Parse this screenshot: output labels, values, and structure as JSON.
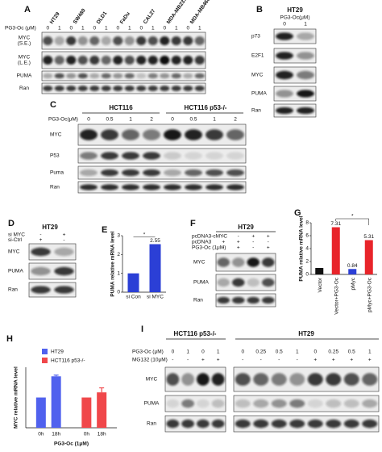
{
  "panels": {
    "A": {
      "label": "A",
      "cell_lines": [
        "HT29",
        "SW480",
        "DLD1",
        "FaDu",
        "CAL27",
        "MDA-MB231",
        "MDA-MB468"
      ],
      "treatment": "PG3-Oc (μM)",
      "doses": [
        "0",
        "1",
        "0",
        "1",
        "0",
        "1",
        "0",
        "1",
        "0",
        "1",
        "0",
        "1",
        "0",
        "1"
      ],
      "blots": [
        {
          "name": "MYC",
          "sub": "(S.E.)"
        },
        {
          "name": "MYC",
          "sub": "(L.E.)"
        },
        {
          "name": "PUMA"
        },
        {
          "name": "Ran"
        }
      ]
    },
    "B": {
      "label": "B",
      "title": "HT29",
      "treatment": "PG3-Oc(μM)",
      "doses": [
        "0",
        "1"
      ],
      "blots": [
        "p73",
        "E2F1",
        "MYC",
        "PUMA",
        "Ran"
      ]
    },
    "C": {
      "label": "C",
      "groups": [
        "HCT116",
        "HCT116 p53-/-"
      ],
      "treatment": "PG3-Oc(μM)",
      "doses": [
        "0",
        "0.5",
        "1",
        "2",
        "0",
        "0.5",
        "1",
        "2"
      ],
      "blots": [
        "MYC",
        "P53",
        "Puma",
        "Ran"
      ]
    },
    "D": {
      "label": "D",
      "title": "HT29",
      "treatments": [
        {
          "name": "si MYC",
          "values": [
            "-",
            "+"
          ]
        },
        {
          "name": "si-Ctrl",
          "values": [
            "+",
            "-"
          ]
        }
      ],
      "blots": [
        "MYC",
        "PUMA",
        "Ran"
      ]
    },
    "E": {
      "label": "E",
      "type": "bar",
      "ylabel": "PUMA relative mRNA level",
      "categories": [
        "si Con",
        "si MYC"
      ],
      "values": [
        1,
        2.55
      ],
      "color": "#2b3fd6",
      "ylim": [
        0,
        3
      ],
      "yticks": [
        0,
        1,
        2,
        3
      ],
      "annotation": "*"
    },
    "F": {
      "label": "F",
      "title": "HT29",
      "treatments": [
        {
          "name": "pcDNA3-cMYC",
          "values": [
            "-",
            "-",
            "+",
            "+"
          ]
        },
        {
          "name": "pcDNA3",
          "values": [
            "+",
            "+",
            "-",
            "-"
          ]
        },
        {
          "name": "PG3-Oc (1μM)",
          "values": [
            "-",
            "+",
            "-",
            "+"
          ]
        }
      ],
      "blots": [
        "MYC",
        "PUMA",
        "Ran"
      ]
    },
    "G": {
      "label": "G",
      "type": "bar",
      "ylabel": "PUMA relative mRNA level",
      "categories": [
        "Vector",
        "Vector+PG3-Oc",
        "pMyc",
        "pMyc+PG3-Oc"
      ],
      "values": [
        1,
        7.31,
        0.84,
        5.31
      ],
      "colors": [
        "#111111",
        "#e8242a",
        "#2b3fd6",
        "#e8242a"
      ],
      "ylim": [
        0,
        8
      ],
      "yticks": [
        0,
        2,
        4,
        6,
        8
      ],
      "annotation": "*"
    },
    "H": {
      "label": "H",
      "type": "bar",
      "ylabel": "MYC relative mRNA level",
      "xlabel": "PG3-Oc (1μM)",
      "categories": [
        "0h",
        "18h"
      ],
      "ylim": [
        0,
        2
      ],
      "series": [
        {
          "name": "HT29",
          "color": "#5061ee",
          "values": [
            1,
            1.7
          ],
          "errors": [
            0,
            0.04
          ]
        },
        {
          "name": "HCT116 p53-/-",
          "color": "#f0474a",
          "values": [
            1,
            1.17
          ],
          "errors": [
            0,
            0.15
          ]
        }
      ]
    },
    "I": {
      "label": "I",
      "groups": [
        "HCT116 p53-/-",
        "HT29"
      ],
      "treatments": [
        {
          "name": "PG3-Oc (μM)",
          "values": [
            "0",
            "1",
            "0",
            "1",
            "0",
            "0.25",
            "0.5",
            "1",
            "0",
            "0.25",
            "0.5",
            "1"
          ]
        },
        {
          "name": "MG132 (10μM)",
          "values": [
            "-",
            "-",
            "+",
            "+",
            "-",
            "-",
            "-",
            "-",
            "+",
            "+",
            "+",
            "+"
          ]
        }
      ],
      "blots": [
        "MYC",
        "PUMA",
        "Ran"
      ]
    }
  }
}
